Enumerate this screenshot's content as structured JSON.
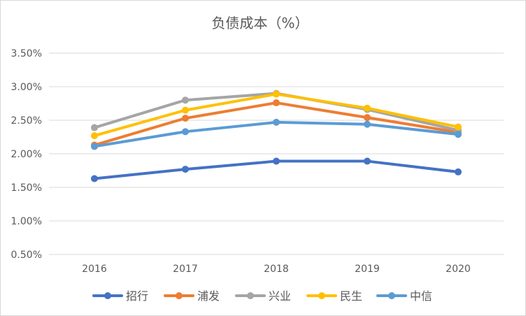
{
  "chart_data": {
    "type": "line",
    "title": "负债成本（%）",
    "xlabel": "",
    "ylabel": "",
    "categories": [
      "2016",
      "2017",
      "2018",
      "2019",
      "2020"
    ],
    "ylim": [
      0.005,
      0.035
    ],
    "yticks": [
      0.005,
      0.01,
      0.015,
      0.02,
      0.025,
      0.03,
      0.035
    ],
    "ytick_labels": [
      "0.50%",
      "1.00%",
      "1.50%",
      "2.00%",
      "2.50%",
      "3.00%",
      "3.50%"
    ],
    "grid": true,
    "legend_position": "bottom",
    "series": [
      {
        "name": "招行",
        "color": "#4472c4",
        "values": [
          0.0163,
          0.0177,
          0.0189,
          0.0189,
          0.0173
        ]
      },
      {
        "name": "浦发",
        "color": "#ed7d31",
        "values": [
          0.0213,
          0.0253,
          0.0276,
          0.0254,
          0.0232
        ]
      },
      {
        "name": "兴业",
        "color": "#a5a5a5",
        "values": [
          0.0239,
          0.028,
          0.029,
          0.0266,
          0.0235
        ]
      },
      {
        "name": "民生",
        "color": "#ffc000",
        "values": [
          0.0227,
          0.0265,
          0.0289,
          0.0268,
          0.024
        ]
      },
      {
        "name": "中信",
        "color": "#5b9bd5",
        "values": [
          0.0211,
          0.0233,
          0.0247,
          0.0244,
          0.0229
        ]
      }
    ]
  }
}
